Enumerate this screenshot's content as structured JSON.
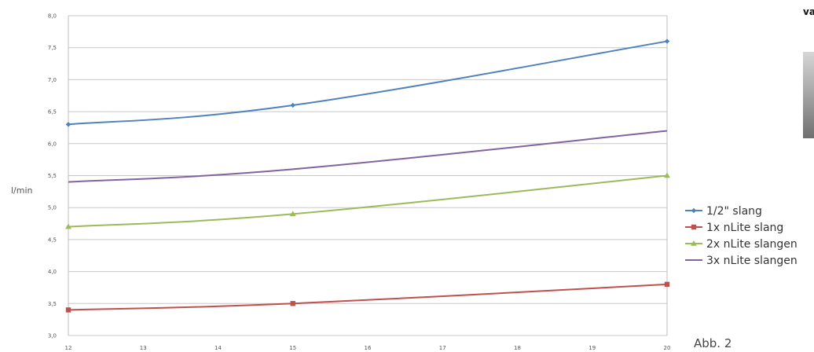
{
  "fragments": {
    "right_edge_text": "va"
  },
  "figure_label": "Abb. 2",
  "colors": {
    "series_1_2_slang": "#4f81bd",
    "series_1x_nlite": "#c0504d",
    "series_2x_nlite": "#9bbb59",
    "series_3x_nlite": "#8064a2"
  },
  "chart_data": {
    "type": "line",
    "ylabel": "l/min",
    "xlabel": "",
    "title": "",
    "x_ticks": [
      "12",
      "13",
      "14",
      "15",
      "16",
      "17",
      "18",
      "19",
      "20"
    ],
    "y_ticks": [
      "3,0",
      "3,5",
      "4,0",
      "4,5",
      "5,0",
      "5,5",
      "6,0",
      "6,5",
      "7,0",
      "7,5",
      "8,0"
    ],
    "xlim": [
      12,
      20
    ],
    "ylim": [
      3.0,
      8.0
    ],
    "grid": "horizontal",
    "legend_position": "right",
    "series": [
      {
        "name": "1/2\" slang",
        "color": "#4f81bd",
        "marker": "diamond",
        "x": [
          12,
          15,
          20
        ],
        "y": [
          6.3,
          6.6,
          7.6
        ]
      },
      {
        "name": "1x nLite slang",
        "color": "#c0504d",
        "marker": "square",
        "x": [
          12,
          15,
          20
        ],
        "y": [
          3.4,
          3.5,
          3.8
        ]
      },
      {
        "name": "2x nLite slangen",
        "color": "#9bbb59",
        "marker": "triangle",
        "x": [
          12,
          15,
          20
        ],
        "y": [
          4.7,
          4.9,
          5.5
        ]
      },
      {
        "name": "3x nLite slangen",
        "color": "#8064a2",
        "marker": "line",
        "x": [
          12,
          15,
          20
        ],
        "y": [
          5.4,
          5.6,
          6.2
        ]
      }
    ]
  }
}
